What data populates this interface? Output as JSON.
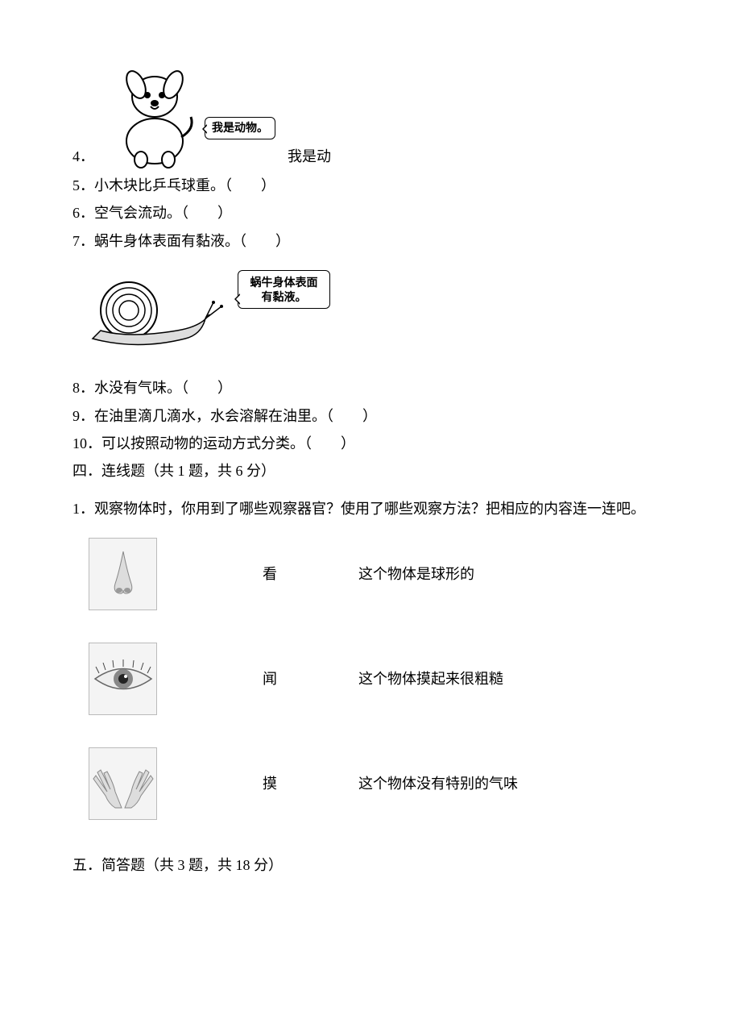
{
  "q4": {
    "number": "4．",
    "bubble": "我是动物。",
    "trailing": "我是动"
  },
  "q5": "5．小木块比乒乓球重。（　　）",
  "q6": "6．空气会流动。（　　）",
  "q7": "7．蜗牛身体表面有黏液。（　　）",
  "snail_bubble": "蜗牛身体表面\n有黏液。",
  "q8": "8．水没有气味。（　　）",
  "q9": "9．在油里滴几滴水，水会溶解在油里。（　　）",
  "q10": "10．可以按照动物的运动方式分类。（　　）",
  "section4_title": "四．连线题（共 1 题，共 6 分）",
  "s4_q1": "1．观察物体时，你用到了哪些观察器官？使用了哪些观察方法？把相应的内容连一连吧。",
  "match": [
    {
      "verb": "看",
      "desc": "这个物体是球形的"
    },
    {
      "verb": "闻",
      "desc": "这个物体摸起来很粗糙"
    },
    {
      "verb": "摸",
      "desc": "这个物体没有特别的气味"
    }
  ],
  "section5_title": "五．简答题（共 3 题，共 18 分）",
  "colors": {
    "text": "#000000",
    "bg": "#ffffff",
    "border": "#bbbbbb"
  }
}
